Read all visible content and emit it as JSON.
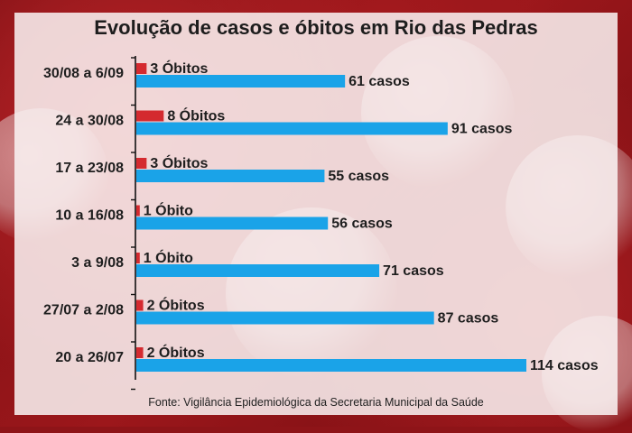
{
  "page": {
    "title": "Evolução de casos e óbitos em Rio das Pedras",
    "source": "Fonte: Vigilância Epidemiológica da Secretaria Municipal da Saúde"
  },
  "chart_data": {
    "type": "bar",
    "orientation": "horizontal",
    "title": "Evolução de casos e óbitos em Rio das Pedras",
    "categories": [
      "30/08 a 6/09",
      "24 a 30/08",
      "17 a 23/08",
      "10 a 16/08",
      "3 a 9/08",
      "27/07 a 2/08",
      "20 a 26/07"
    ],
    "series": [
      {
        "color": "#d42a2f",
        "values": [
          3,
          8,
          3,
          1,
          1,
          2,
          2
        ],
        "labels": [
          "3 Óbitos",
          "8 Óbitos",
          "3 Óbitos",
          "1 Óbito",
          "1 Óbito",
          "2 Óbitos",
          "2 Óbitos"
        ]
      },
      {
        "color": "#1aa3e8",
        "values": [
          61,
          91,
          55,
          56,
          71,
          87,
          114
        ],
        "labels": [
          "61 casos",
          "91 casos",
          "55 casos",
          "56 casos",
          "71 casos",
          "87 casos",
          "114 casos"
        ]
      }
    ],
    "xlim": [
      0,
      114
    ],
    "grid": false,
    "legend": "none"
  }
}
